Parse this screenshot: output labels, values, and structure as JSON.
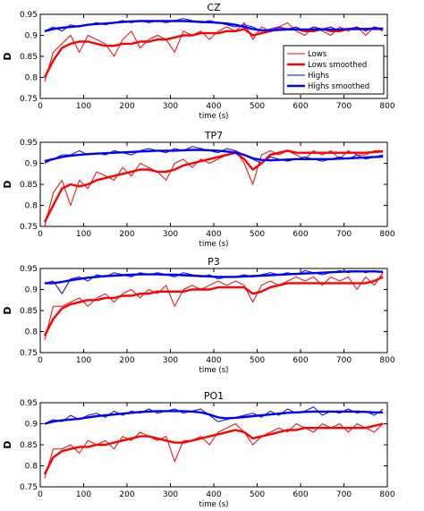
{
  "colors": {
    "lows": "#ff0000",
    "highs": "#0000ff",
    "axis": "#000000",
    "background": "#ffffff"
  },
  "chart_data": [
    {
      "type": "line",
      "title": "CZ",
      "xlabel": "time (s)",
      "ylabel": "D",
      "xlim": [
        0,
        800
      ],
      "ylim": [
        0.75,
        0.95
      ],
      "xticks": [
        0,
        100,
        200,
        300,
        400,
        500,
        600,
        700,
        800
      ],
      "yticks": [
        0.75,
        0.8,
        0.85,
        0.9,
        0.95
      ],
      "xtick_labels": [
        "0",
        "100",
        "200",
        "300",
        "400",
        "500",
        "600",
        "700",
        "800"
      ],
      "ytick_labels": [
        "0.75",
        "0.8",
        "0.85",
        "0.9",
        "0.95"
      ],
      "grid": false,
      "legend": {
        "placement": "right",
        "entries": [
          "Lows",
          "Lows smoothed",
          "Highs",
          "Highs smoothed"
        ]
      },
      "x": [
        10,
        30,
        50,
        70,
        90,
        110,
        130,
        150,
        170,
        190,
        210,
        230,
        250,
        270,
        290,
        310,
        330,
        350,
        370,
        390,
        410,
        430,
        450,
        470,
        490,
        510,
        530,
        550,
        570,
        590,
        610,
        630,
        650,
        670,
        690,
        710,
        730,
        750,
        770,
        790
      ],
      "series": [
        {
          "name": "Lows",
          "values": [
            0.79,
            0.86,
            0.88,
            0.9,
            0.86,
            0.9,
            0.89,
            0.88,
            0.85,
            0.89,
            0.91,
            0.87,
            0.89,
            0.9,
            0.89,
            0.86,
            0.91,
            0.9,
            0.91,
            0.89,
            0.91,
            0.92,
            0.91,
            0.93,
            0.89,
            0.92,
            0.91,
            0.92,
            0.93,
            0.91,
            0.9,
            0.92,
            0.91,
            0.9,
            0.92,
            0.91,
            0.92,
            0.9,
            0.92,
            0.91
          ]
        },
        {
          "name": "Lows smoothed",
          "values": [
            0.8,
            0.84,
            0.87,
            0.88,
            0.885,
            0.885,
            0.88,
            0.875,
            0.875,
            0.88,
            0.88,
            0.885,
            0.885,
            0.89,
            0.89,
            0.895,
            0.9,
            0.9,
            0.905,
            0.905,
            0.905,
            0.91,
            0.91,
            0.915,
            0.9,
            0.905,
            0.91,
            0.915,
            0.915,
            0.915,
            0.91,
            0.91,
            0.915,
            0.91,
            0.91,
            0.915,
            0.915,
            0.915,
            0.915,
            0.915
          ]
        },
        {
          "name": "Highs",
          "values": [
            0.91,
            0.92,
            0.91,
            0.925,
            0.92,
            0.925,
            0.93,
            0.925,
            0.93,
            0.935,
            0.93,
            0.935,
            0.93,
            0.935,
            0.93,
            0.935,
            0.94,
            0.935,
            0.93,
            0.935,
            0.93,
            0.925,
            0.92,
            0.925,
            0.92,
            0.91,
            0.915,
            0.92,
            0.915,
            0.92,
            0.91,
            0.92,
            0.915,
            0.92,
            0.91,
            0.915,
            0.92,
            0.91,
            0.92,
            0.915
          ]
        },
        {
          "name": "Highs smoothed",
          "values": [
            0.91,
            0.915,
            0.918,
            0.92,
            0.922,
            0.925,
            0.927,
            0.928,
            0.93,
            0.932,
            0.933,
            0.934,
            0.934,
            0.934,
            0.934,
            0.934,
            0.934,
            0.933,
            0.932,
            0.931,
            0.93,
            0.928,
            0.925,
            0.92,
            0.915,
            0.912,
            0.912,
            0.913,
            0.914,
            0.914,
            0.914,
            0.914,
            0.914,
            0.914,
            0.914,
            0.915,
            0.915,
            0.915,
            0.916,
            0.916
          ]
        }
      ]
    },
    {
      "type": "line",
      "title": "TP7",
      "xlabel": "time (s)",
      "ylabel": "D",
      "xlim": [
        0,
        800
      ],
      "ylim": [
        0.75,
        0.95
      ],
      "xticks": [
        0,
        100,
        200,
        300,
        400,
        500,
        600,
        700,
        800
      ],
      "yticks": [
        0.75,
        0.8,
        0.85,
        0.9,
        0.95
      ],
      "xtick_labels": [
        "0",
        "100",
        "200",
        "300",
        "400",
        "500",
        "600",
        "700",
        "800"
      ],
      "ytick_labels": [
        "0.75",
        "0.8",
        "0.85",
        "0.9",
        "0.95"
      ],
      "grid": false,
      "x": [
        10,
        30,
        50,
        70,
        90,
        110,
        130,
        150,
        170,
        190,
        210,
        230,
        250,
        270,
        290,
        310,
        330,
        350,
        370,
        390,
        410,
        430,
        450,
        470,
        490,
        510,
        530,
        550,
        570,
        590,
        610,
        630,
        650,
        670,
        690,
        710,
        730,
        750,
        770,
        790
      ],
      "series": [
        {
          "name": "Lows",
          "values": [
            0.75,
            0.83,
            0.86,
            0.8,
            0.86,
            0.84,
            0.88,
            0.87,
            0.86,
            0.89,
            0.87,
            0.9,
            0.89,
            0.88,
            0.86,
            0.9,
            0.91,
            0.89,
            0.91,
            0.9,
            0.91,
            0.92,
            0.93,
            0.9,
            0.85,
            0.92,
            0.93,
            0.92,
            0.93,
            0.92,
            0.91,
            0.93,
            0.92,
            0.93,
            0.91,
            0.93,
            0.92,
            0.92,
            0.93,
            0.93
          ]
        },
        {
          "name": "Lows smoothed",
          "values": [
            0.76,
            0.8,
            0.84,
            0.85,
            0.845,
            0.85,
            0.86,
            0.865,
            0.87,
            0.875,
            0.88,
            0.885,
            0.885,
            0.88,
            0.88,
            0.885,
            0.895,
            0.9,
            0.905,
            0.91,
            0.915,
            0.92,
            0.925,
            0.91,
            0.885,
            0.9,
            0.92,
            0.925,
            0.93,
            0.925,
            0.925,
            0.925,
            0.925,
            0.925,
            0.925,
            0.925,
            0.925,
            0.925,
            0.927,
            0.928
          ]
        },
        {
          "name": "Highs",
          "values": [
            0.9,
            0.91,
            0.92,
            0.92,
            0.93,
            0.92,
            0.925,
            0.92,
            0.93,
            0.925,
            0.92,
            0.93,
            0.935,
            0.93,
            0.925,
            0.935,
            0.93,
            0.94,
            0.935,
            0.93,
            0.925,
            0.935,
            0.93,
            0.92,
            0.91,
            0.9,
            0.915,
            0.91,
            0.905,
            0.91,
            0.915,
            0.91,
            0.905,
            0.91,
            0.915,
            0.91,
            0.92,
            0.91,
            0.915,
            0.92
          ]
        },
        {
          "name": "Highs smoothed",
          "values": [
            0.905,
            0.91,
            0.915,
            0.918,
            0.92,
            0.922,
            0.923,
            0.924,
            0.925,
            0.926,
            0.927,
            0.928,
            0.929,
            0.93,
            0.93,
            0.93,
            0.931,
            0.932,
            0.932,
            0.931,
            0.93,
            0.928,
            0.925,
            0.92,
            0.912,
            0.908,
            0.907,
            0.908,
            0.909,
            0.91,
            0.91,
            0.91,
            0.91,
            0.91,
            0.911,
            0.912,
            0.913,
            0.914,
            0.915,
            0.916
          ]
        }
      ]
    },
    {
      "type": "line",
      "title": "P3",
      "xlabel": "time (s)",
      "ylabel": "D",
      "xlim": [
        0,
        800
      ],
      "ylim": [
        0.75,
        0.95
      ],
      "xticks": [
        0,
        100,
        200,
        300,
        400,
        500,
        600,
        700,
        800
      ],
      "yticks": [
        0.75,
        0.8,
        0.85,
        0.9,
        0.95
      ],
      "xtick_labels": [
        "0",
        "100",
        "200",
        "300",
        "400",
        "500",
        "600",
        "700",
        "800"
      ],
      "ytick_labels": [
        "0.75",
        "0.8",
        "0.85",
        "0.9",
        "0.95"
      ],
      "grid": false,
      "x": [
        10,
        30,
        50,
        70,
        90,
        110,
        130,
        150,
        170,
        190,
        210,
        230,
        250,
        270,
        290,
        310,
        330,
        350,
        370,
        390,
        410,
        430,
        450,
        470,
        490,
        510,
        530,
        550,
        570,
        590,
        610,
        630,
        650,
        670,
        690,
        710,
        730,
        750,
        770,
        790
      ],
      "series": [
        {
          "name": "Lows",
          "values": [
            0.78,
            0.86,
            0.86,
            0.87,
            0.88,
            0.86,
            0.88,
            0.89,
            0.87,
            0.89,
            0.9,
            0.88,
            0.9,
            0.89,
            0.91,
            0.86,
            0.9,
            0.91,
            0.9,
            0.91,
            0.92,
            0.91,
            0.92,
            0.91,
            0.87,
            0.91,
            0.92,
            0.91,
            0.92,
            0.93,
            0.92,
            0.93,
            0.91,
            0.93,
            0.92,
            0.93,
            0.9,
            0.93,
            0.91,
            0.94
          ]
        },
        {
          "name": "Lows smoothed",
          "values": [
            0.79,
            0.83,
            0.855,
            0.865,
            0.87,
            0.875,
            0.875,
            0.88,
            0.88,
            0.885,
            0.885,
            0.89,
            0.89,
            0.895,
            0.895,
            0.895,
            0.895,
            0.9,
            0.9,
            0.9,
            0.905,
            0.905,
            0.905,
            0.905,
            0.89,
            0.895,
            0.905,
            0.91,
            0.915,
            0.915,
            0.915,
            0.915,
            0.915,
            0.915,
            0.915,
            0.915,
            0.915,
            0.915,
            0.92,
            0.93
          ]
        },
        {
          "name": "Highs",
          "values": [
            0.915,
            0.92,
            0.89,
            0.925,
            0.93,
            0.92,
            0.935,
            0.93,
            0.94,
            0.935,
            0.93,
            0.94,
            0.935,
            0.94,
            0.935,
            0.93,
            0.94,
            0.935,
            0.93,
            0.935,
            0.925,
            0.93,
            0.93,
            0.935,
            0.93,
            0.935,
            0.94,
            0.935,
            0.94,
            0.935,
            0.945,
            0.94,
            0.935,
            0.94,
            0.945,
            0.94,
            0.945,
            0.94,
            0.945,
            0.94
          ]
        },
        {
          "name": "Highs smoothed",
          "values": [
            0.915,
            0.915,
            0.918,
            0.922,
            0.925,
            0.928,
            0.93,
            0.932,
            0.933,
            0.934,
            0.935,
            0.936,
            0.936,
            0.936,
            0.935,
            0.935,
            0.934,
            0.933,
            0.932,
            0.931,
            0.93,
            0.93,
            0.93,
            0.931,
            0.932,
            0.933,
            0.934,
            0.935,
            0.936,
            0.937,
            0.938,
            0.939,
            0.94,
            0.941,
            0.942,
            0.943,
            0.943,
            0.943,
            0.943,
            0.942
          ]
        }
      ]
    },
    {
      "type": "line",
      "title": "PO1",
      "xlabel": "time (s)",
      "ylabel": "D",
      "xlim": [
        0,
        800
      ],
      "ylim": [
        0.75,
        0.95
      ],
      "xticks": [
        0,
        100,
        200,
        300,
        400,
        500,
        600,
        700,
        800
      ],
      "yticks": [
        0.75,
        0.8,
        0.85,
        0.9,
        0.95
      ],
      "xtick_labels": [
        "0",
        "100",
        "200",
        "300",
        "400",
        "500",
        "600",
        "700",
        "800"
      ],
      "ytick_labels": [
        "0.75",
        "0.8",
        "0.85",
        "0.9",
        "0.95"
      ],
      "grid": false,
      "x": [
        10,
        30,
        50,
        70,
        90,
        110,
        130,
        150,
        170,
        190,
        210,
        230,
        250,
        270,
        290,
        310,
        330,
        350,
        370,
        390,
        410,
        430,
        450,
        470,
        490,
        510,
        530,
        550,
        570,
        590,
        610,
        630,
        650,
        670,
        690,
        710,
        730,
        750,
        770,
        790
      ],
      "series": [
        {
          "name": "Lows",
          "values": [
            0.77,
            0.84,
            0.84,
            0.85,
            0.83,
            0.86,
            0.85,
            0.86,
            0.84,
            0.87,
            0.86,
            0.88,
            0.87,
            0.86,
            0.87,
            0.81,
            0.86,
            0.86,
            0.87,
            0.85,
            0.88,
            0.89,
            0.9,
            0.88,
            0.85,
            0.87,
            0.88,
            0.89,
            0.88,
            0.9,
            0.89,
            0.88,
            0.9,
            0.89,
            0.9,
            0.88,
            0.9,
            0.89,
            0.88,
            0.9
          ]
        },
        {
          "name": "Lows smoothed",
          "values": [
            0.78,
            0.82,
            0.835,
            0.84,
            0.845,
            0.845,
            0.85,
            0.85,
            0.855,
            0.86,
            0.865,
            0.87,
            0.87,
            0.865,
            0.86,
            0.855,
            0.855,
            0.86,
            0.865,
            0.87,
            0.875,
            0.88,
            0.885,
            0.88,
            0.865,
            0.87,
            0.875,
            0.88,
            0.885,
            0.885,
            0.89,
            0.89,
            0.89,
            0.89,
            0.89,
            0.89,
            0.89,
            0.89,
            0.895,
            0.9
          ]
        },
        {
          "name": "Highs",
          "values": [
            0.9,
            0.91,
            0.905,
            0.92,
            0.91,
            0.92,
            0.925,
            0.915,
            0.93,
            0.92,
            0.93,
            0.925,
            0.935,
            0.925,
            0.93,
            0.935,
            0.925,
            0.93,
            0.935,
            0.92,
            0.905,
            0.91,
            0.915,
            0.92,
            0.925,
            0.915,
            0.93,
            0.92,
            0.935,
            0.925,
            0.93,
            0.94,
            0.92,
            0.93,
            0.925,
            0.935,
            0.925,
            0.93,
            0.92,
            0.935
          ]
        },
        {
          "name": "Highs smoothed",
          "values": [
            0.9,
            0.905,
            0.908,
            0.91,
            0.912,
            0.915,
            0.918,
            0.92,
            0.922,
            0.924,
            0.926,
            0.928,
            0.929,
            0.93,
            0.93,
            0.93,
            0.93,
            0.929,
            0.927,
            0.922,
            0.915,
            0.913,
            0.914,
            0.916,
            0.918,
            0.92,
            0.922,
            0.924,
            0.926,
            0.927,
            0.928,
            0.929,
            0.929,
            0.929,
            0.929,
            0.929,
            0.929,
            0.928,
            0.927,
            0.927
          ]
        }
      ]
    }
  ]
}
